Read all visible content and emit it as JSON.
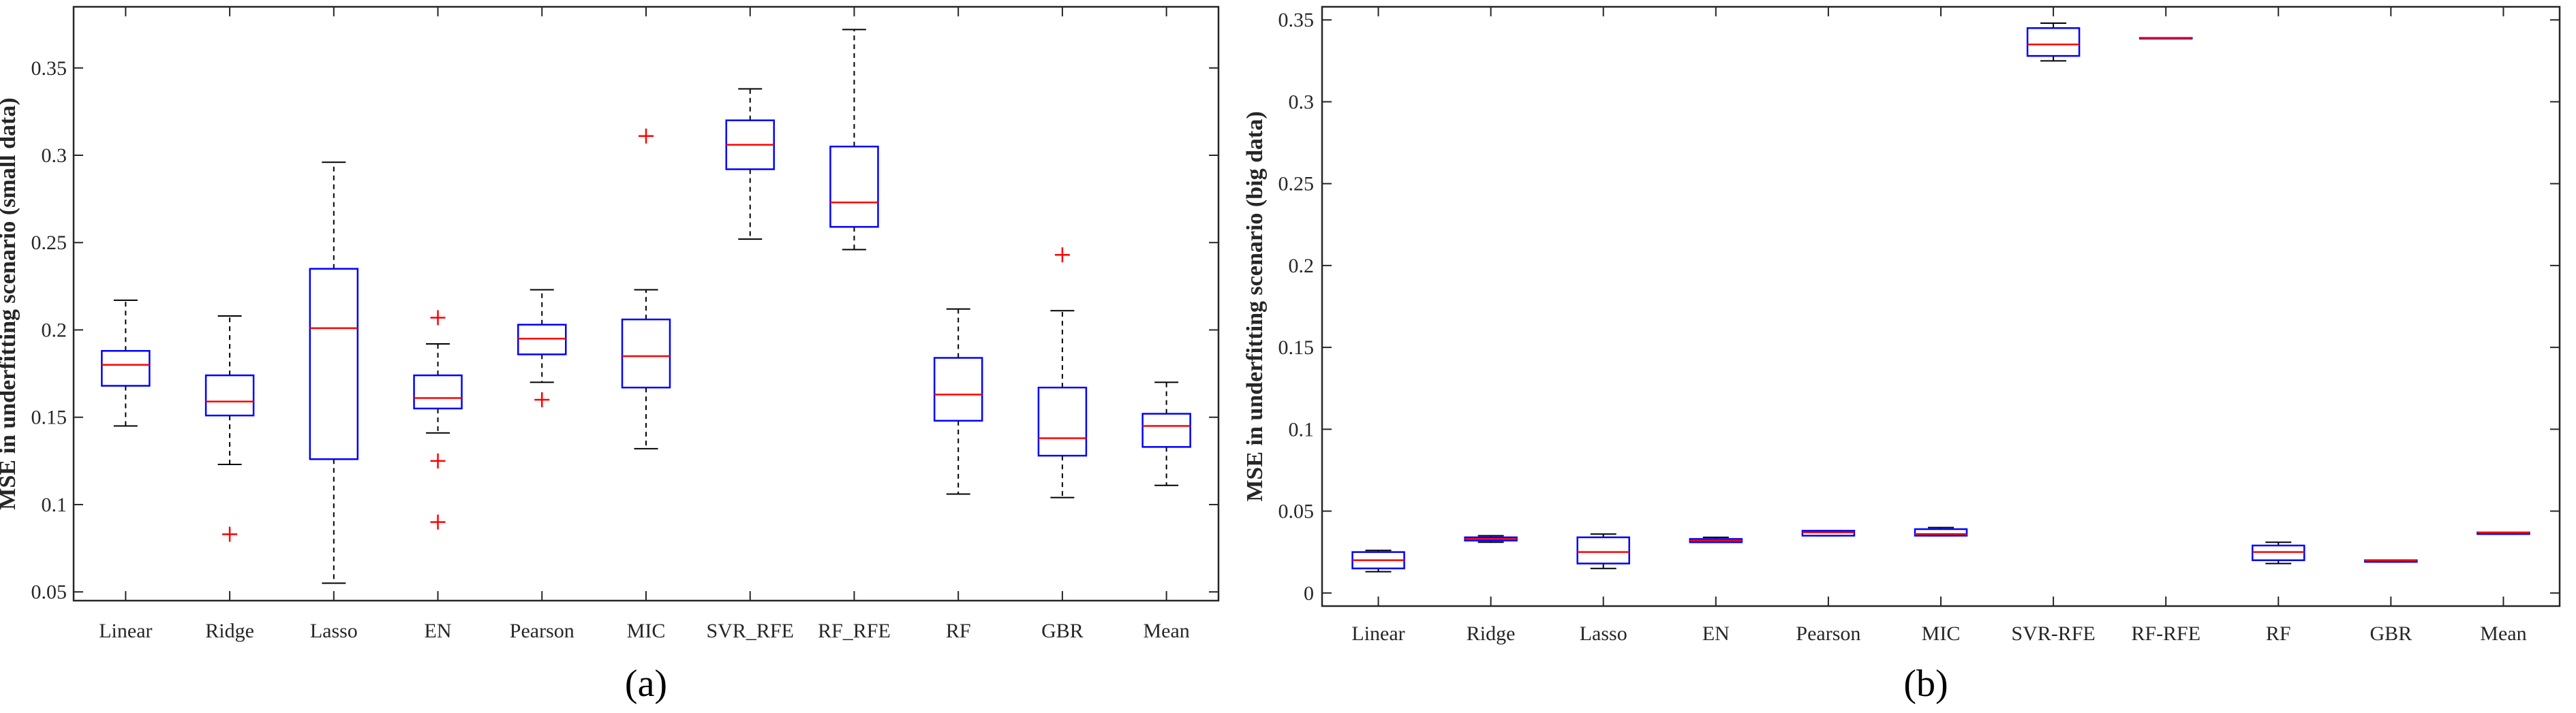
{
  "chart_data": [
    {
      "type": "box",
      "caption": "(a)",
      "title": "",
      "xlabel": "",
      "ylabel": "MSE in underfitting scenario (small data)",
      "ylim": [
        0.045,
        0.385
      ],
      "yticks": [
        0.05,
        0.1,
        0.15,
        0.2,
        0.25,
        0.3,
        0.35
      ],
      "ytick_labels": [
        "0.05",
        "0.1",
        "0.15",
        "0.2",
        "0.25",
        "0.3",
        "0.35"
      ],
      "categories": [
        "Linear",
        "Ridge",
        "Lasso",
        "EN",
        "Pearson",
        "MIC",
        "SVR_RFE",
        "RF_RFE",
        "RF",
        "GBR",
        "Mean"
      ],
      "boxes": [
        {
          "min": 0.145,
          "q1": 0.168,
          "median": 0.18,
          "q3": 0.188,
          "max": 0.217,
          "outliers": []
        },
        {
          "min": 0.123,
          "q1": 0.151,
          "median": 0.159,
          "q3": 0.174,
          "max": 0.208,
          "outliers": [
            0.083
          ]
        },
        {
          "min": 0.055,
          "q1": 0.126,
          "median": 0.201,
          "q3": 0.235,
          "max": 0.296,
          "outliers": []
        },
        {
          "min": 0.141,
          "q1": 0.155,
          "median": 0.161,
          "q3": 0.174,
          "max": 0.192,
          "outliers": [
            0.207,
            0.125,
            0.09
          ]
        },
        {
          "min": 0.17,
          "q1": 0.186,
          "median": 0.195,
          "q3": 0.203,
          "max": 0.223,
          "outliers": [
            0.16
          ]
        },
        {
          "min": 0.132,
          "q1": 0.167,
          "median": 0.185,
          "q3": 0.206,
          "max": 0.223,
          "outliers": [
            0.311
          ]
        },
        {
          "min": 0.252,
          "q1": 0.292,
          "median": 0.306,
          "q3": 0.32,
          "max": 0.338,
          "outliers": []
        },
        {
          "min": 0.246,
          "q1": 0.259,
          "median": 0.273,
          "q3": 0.305,
          "max": 0.372,
          "outliers": []
        },
        {
          "min": 0.106,
          "q1": 0.148,
          "median": 0.163,
          "q3": 0.184,
          "max": 0.212,
          "outliers": []
        },
        {
          "min": 0.104,
          "q1": 0.128,
          "median": 0.138,
          "q3": 0.167,
          "max": 0.211,
          "outliers": [
            0.243
          ]
        },
        {
          "min": 0.111,
          "q1": 0.133,
          "median": 0.145,
          "q3": 0.152,
          "max": 0.17,
          "outliers": []
        }
      ],
      "colors": {
        "box": "#0000ff",
        "median": "#ff0000",
        "outlier": "#ff0000",
        "whisker": "#000000"
      },
      "grid": false,
      "legend": "none"
    },
    {
      "type": "box",
      "caption": "(b)",
      "title": "",
      "xlabel": "",
      "ylabel": "MSE in underfitting scenario (big data)",
      "ylim": [
        -0.008,
        0.358
      ],
      "yticks": [
        0,
        0.05,
        0.1,
        0.15,
        0.2,
        0.25,
        0.3,
        0.35
      ],
      "ytick_labels": [
        "0",
        "0.05",
        "0.1",
        "0.15",
        "0.2",
        "0.25",
        "0.3",
        "0.35"
      ],
      "categories": [
        "Linear",
        "Ridge",
        "Lasso",
        "EN",
        "Pearson",
        "MIC",
        "SVR-RFE",
        "RF-RFE",
        "RF",
        "GBR",
        "Mean"
      ],
      "boxes": [
        {
          "min": 0.013,
          "q1": 0.015,
          "median": 0.02,
          "q3": 0.025,
          "max": 0.026,
          "outliers": []
        },
        {
          "min": 0.031,
          "q1": 0.032,
          "median": 0.033,
          "q3": 0.034,
          "max": 0.035,
          "outliers": []
        },
        {
          "min": 0.015,
          "q1": 0.018,
          "median": 0.025,
          "q3": 0.034,
          "max": 0.036,
          "outliers": []
        },
        {
          "min": 0.031,
          "q1": 0.031,
          "median": 0.032,
          "q3": 0.033,
          "max": 0.034,
          "outliers": []
        },
        {
          "min": 0.035,
          "q1": 0.035,
          "median": 0.037,
          "q3": 0.038,
          "max": 0.038,
          "outliers": []
        },
        {
          "min": 0.035,
          "q1": 0.035,
          "median": 0.036,
          "q3": 0.039,
          "max": 0.04,
          "outliers": []
        },
        {
          "min": 0.325,
          "q1": 0.328,
          "median": 0.335,
          "q3": 0.345,
          "max": 0.348,
          "outliers": []
        },
        {
          "min": 0.339,
          "q1": 0.339,
          "median": 0.339,
          "q3": 0.339,
          "max": 0.339,
          "outliers": []
        },
        {
          "min": 0.018,
          "q1": 0.02,
          "median": 0.025,
          "q3": 0.029,
          "max": 0.031,
          "outliers": []
        },
        {
          "min": 0.019,
          "q1": 0.019,
          "median": 0.02,
          "q3": 0.02,
          "max": 0.02,
          "outliers": []
        },
        {
          "min": 0.036,
          "q1": 0.036,
          "median": 0.037,
          "q3": 0.037,
          "max": 0.037,
          "outliers": []
        }
      ],
      "colors": {
        "box": "#0000ff",
        "median": "#ff0000",
        "outlier": "#ff0000",
        "whisker": "#000000"
      },
      "grid": false,
      "legend": "none"
    }
  ]
}
